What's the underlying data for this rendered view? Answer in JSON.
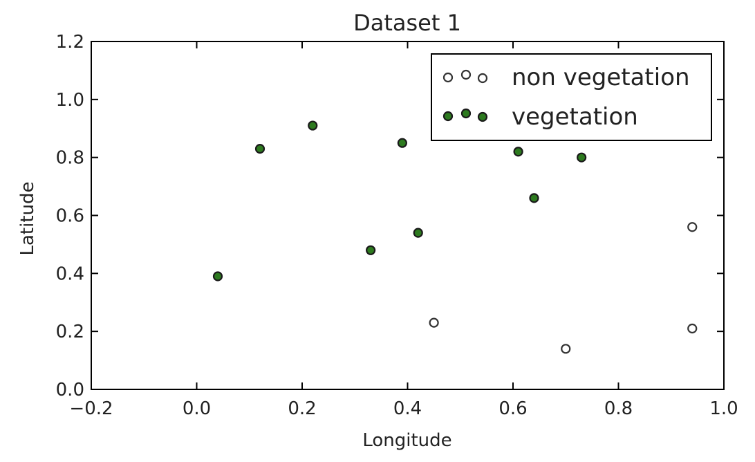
{
  "chart_data": {
    "type": "scatter",
    "title": "Dataset 1",
    "xlabel": "Longitude",
    "ylabel": "Latitude",
    "xlim": [
      -0.2,
      1.0
    ],
    "ylim": [
      0.0,
      1.2
    ],
    "xticks": [
      "−0.2",
      "0.0",
      "0.2",
      "0.4",
      "0.6",
      "0.8",
      "1.0"
    ],
    "xtick_values": [
      -0.2,
      0.0,
      0.2,
      0.4,
      0.6,
      0.8,
      1.0
    ],
    "yticks": [
      "0.0",
      "0.2",
      "0.4",
      "0.6",
      "0.8",
      "1.0",
      "1.2"
    ],
    "ytick_values": [
      0.0,
      0.2,
      0.4,
      0.6,
      0.8,
      1.0,
      1.2
    ],
    "grid": false,
    "legend_position": "top-right",
    "series": [
      {
        "name": "non vegetation",
        "fill": "#ffffff",
        "edge": "#333333",
        "points": [
          {
            "x": 0.45,
            "y": 0.23
          },
          {
            "x": 0.7,
            "y": 0.14
          },
          {
            "x": 0.94,
            "y": 0.21
          },
          {
            "x": 0.94,
            "y": 0.56
          }
        ]
      },
      {
        "name": "vegetation",
        "fill": "#2d7a1f",
        "edge": "#1a1a1a",
        "points": [
          {
            "x": 0.04,
            "y": 0.39
          },
          {
            "x": 0.12,
            "y": 0.83
          },
          {
            "x": 0.22,
            "y": 0.91
          },
          {
            "x": 0.33,
            "y": 0.48
          },
          {
            "x": 0.39,
            "y": 0.85
          },
          {
            "x": 0.42,
            "y": 0.54
          },
          {
            "x": 0.61,
            "y": 0.82
          },
          {
            "x": 0.64,
            "y": 0.66
          },
          {
            "x": 0.73,
            "y": 0.8
          }
        ]
      }
    ]
  }
}
